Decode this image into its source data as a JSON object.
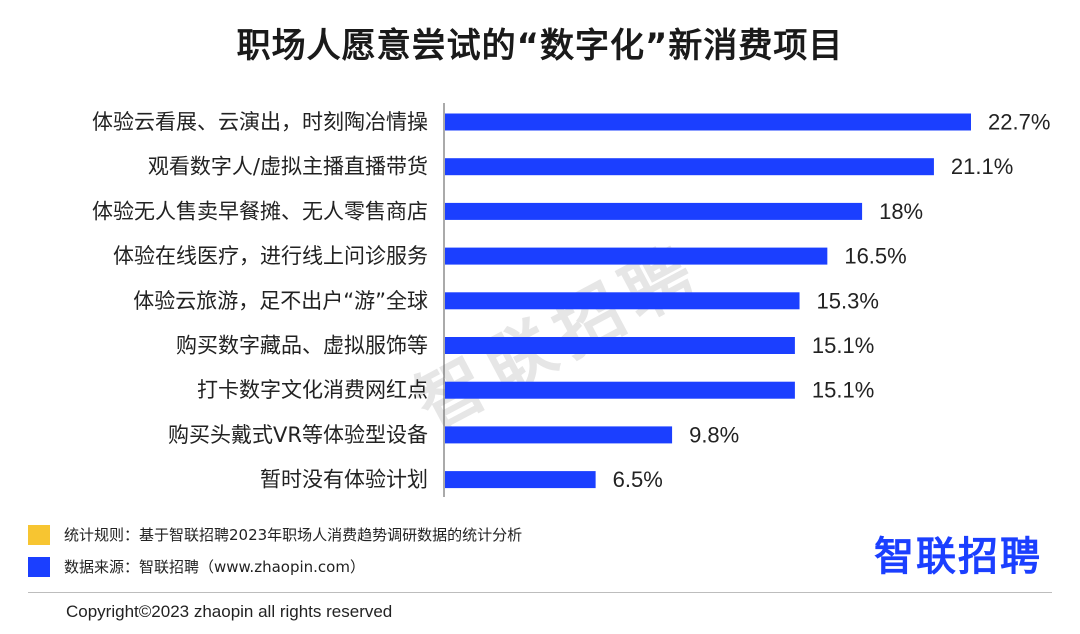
{
  "title": "职场人愿意尝试的“数字化”新消费项目",
  "chart_data": {
    "type": "bar",
    "orientation": "horizontal",
    "categories": [
      "体验云看展、云演出，时刻陶冶情操",
      "观看数字人/虚拟主播直播带货",
      "体验无人售卖早餐摊、无人零售商店",
      "体验在线医疗，进行线上问诊服务",
      "体验云旅游，足不出户“游”全球",
      "购买数字藏品、虚拟服饰等",
      "打卡数字文化消费网红点",
      "购买头戴式VR等体验型设备",
      "暂时没有体验计划"
    ],
    "values": [
      22.7,
      21.1,
      18,
      16.5,
      15.3,
      15.1,
      15.1,
      9.8,
      6.5
    ],
    "value_labels": [
      "22.7%",
      "21.1%",
      "18%",
      "16.5%",
      "15.3%",
      "15.1%",
      "15.1%",
      "9.8%",
      "6.5%"
    ],
    "unit": "%",
    "xlim": [
      0,
      22.7
    ],
    "bar_color": "#1b3fff",
    "grid": false,
    "legend": false
  },
  "legend": {
    "items": [
      {
        "color": "#f7c531",
        "text": "统计规则：基于智联招聘2023年职场人消费趋势调研数据的统计分析"
      },
      {
        "color": "#1b3fff",
        "text": "数据来源：智联招聘（www.zhaopin.com）"
      }
    ]
  },
  "watermark": "智联招聘",
  "logo": "智联招聘",
  "copyright": "Copyright©2023 zhaopin all rights reserved"
}
